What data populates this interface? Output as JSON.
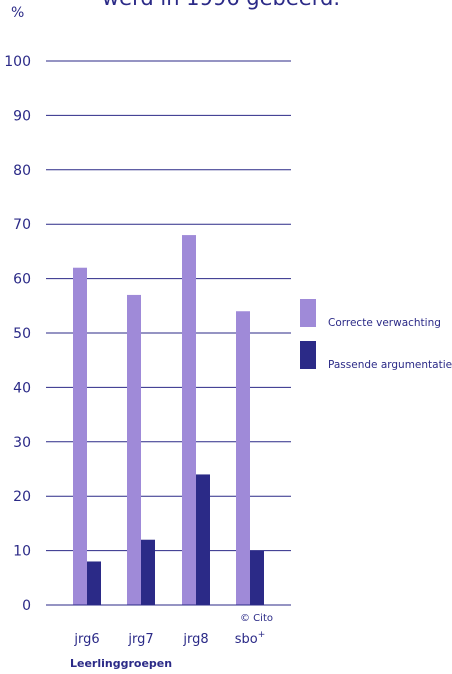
{
  "chart_data": {
    "type": "bar",
    "title": "werd in 1996 gebeerd.",
    "unit": "%",
    "xlabel": "Leerlinggroepen",
    "ylabel": "",
    "credit": "© Cito",
    "categories": [
      "jrg6",
      "jrg7",
      "jrg8",
      "sbo"
    ],
    "category_superscripts": [
      "",
      "",
      "",
      "+"
    ],
    "ylim": [
      0,
      100
    ],
    "yticks": [
      0,
      10,
      20,
      30,
      40,
      50,
      60,
      70,
      80,
      90,
      100
    ],
    "grid": true,
    "legend_position": "right",
    "series": [
      {
        "name": "Correcte verwachting",
        "color": "#9f8ad8",
        "values": [
          62,
          57,
          68,
          54
        ]
      },
      {
        "name": "Passende argumentatie",
        "color": "#2b2a87",
        "values": [
          8,
          12,
          24,
          10
        ]
      }
    ]
  },
  "colors": {
    "axis": "#2b2a87",
    "text": "#2b2a87",
    "background": "#ffffff"
  }
}
